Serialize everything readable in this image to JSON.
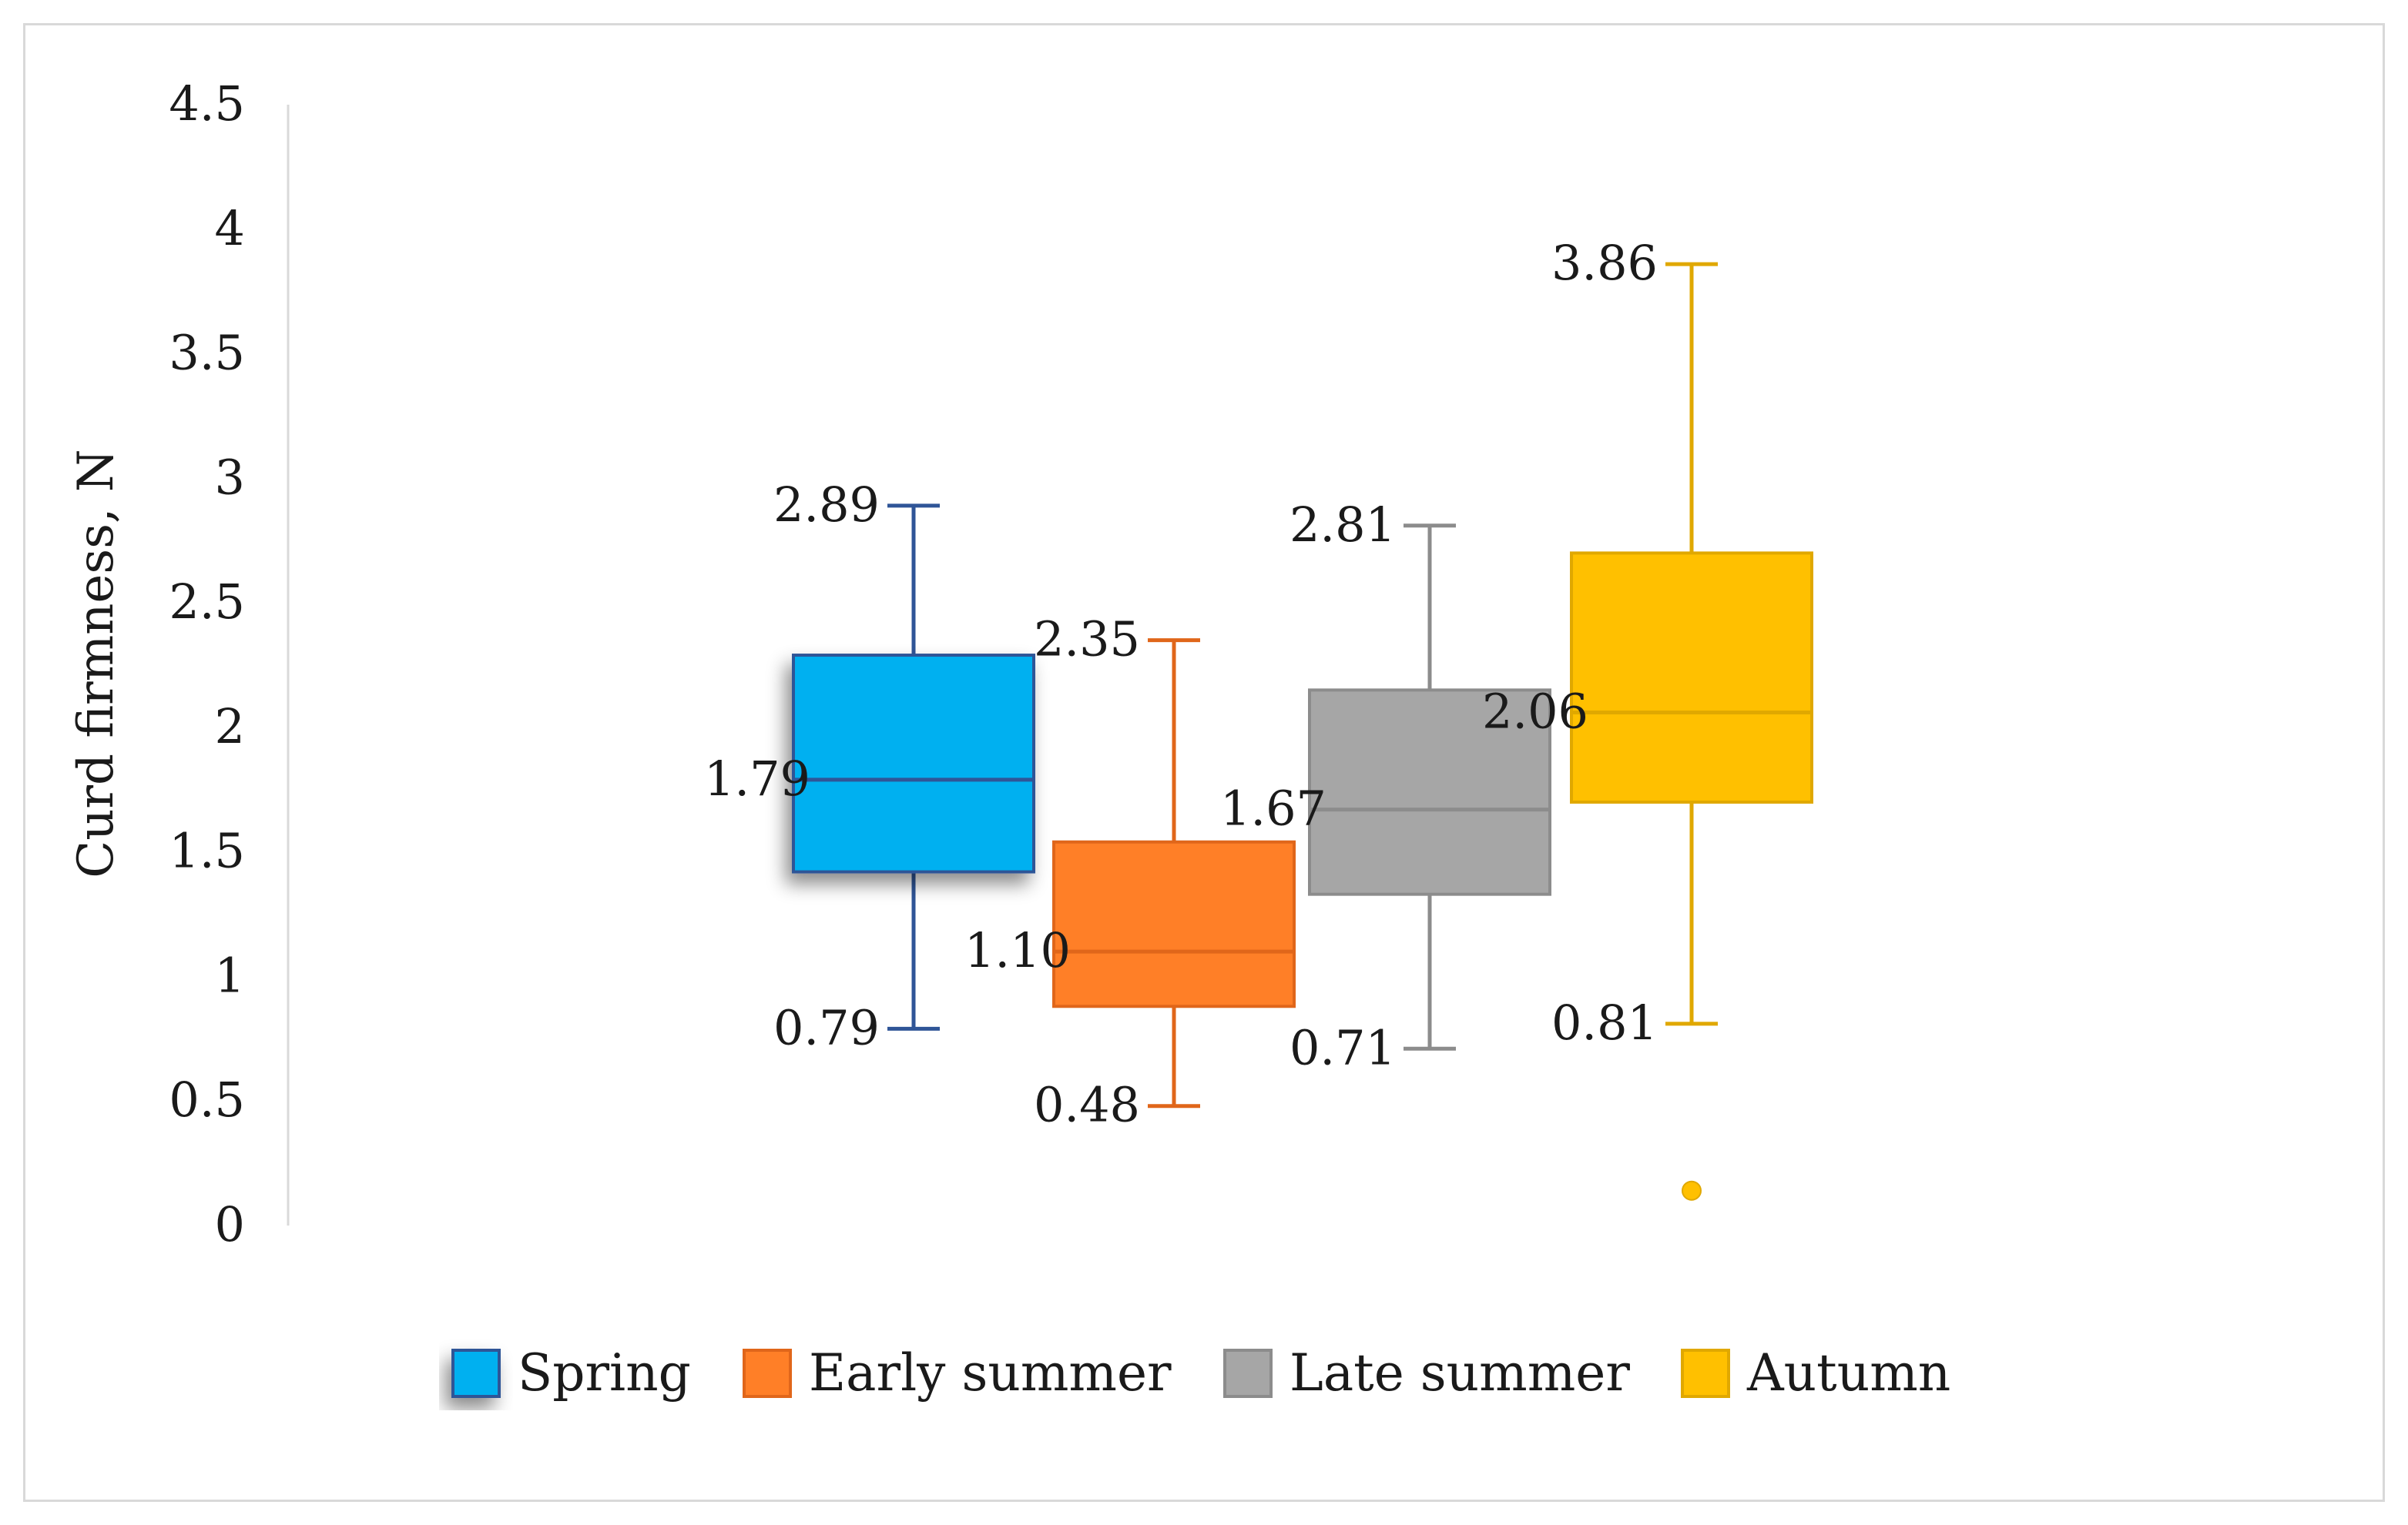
{
  "chart_data": {
    "type": "boxplot",
    "ylabel": "Curd firmness, N",
    "ylim": [
      0,
      4.5
    ],
    "yticks": [
      "0",
      "0.5",
      "1",
      "1.5",
      "2",
      "2.5",
      "3",
      "3.5",
      "4",
      "4.5"
    ],
    "ytick_values": [
      0,
      0.5,
      1,
      1.5,
      2,
      2.5,
      3,
      3.5,
      4,
      4.5
    ],
    "grid": false,
    "legend_position": "bottom",
    "series": [
      {
        "name": "Spring",
        "color": "#00b0f0",
        "edge_color": "#2f5597",
        "min": 0.79,
        "q1": 1.42,
        "median": 1.79,
        "q3": 2.29,
        "max": 2.89,
        "min_label": "0.79",
        "median_label": "1.79",
        "max_label": "2.89",
        "outliers": []
      },
      {
        "name": "Early summer",
        "color": "#ff7f27",
        "edge_color": "#e0661a",
        "min": 0.48,
        "q1": 0.88,
        "median": 1.1,
        "q3": 1.54,
        "max": 2.35,
        "min_label": "0.48",
        "median_label": "1.10",
        "max_label": "2.35",
        "outliers": []
      },
      {
        "name": "Late summer",
        "color": "#a6a6a6",
        "edge_color": "#8c8c8c",
        "min": 0.71,
        "q1": 1.33,
        "median": 1.67,
        "q3": 2.15,
        "max": 2.81,
        "min_label": "0.71",
        "median_label": "1.67",
        "max_label": "2.81",
        "outliers": []
      },
      {
        "name": "Autumn",
        "color": "#ffc000",
        "edge_color": "#e0a800",
        "min": 0.81,
        "q1": 1.7,
        "median": 2.06,
        "q3": 2.7,
        "max": 3.86,
        "min_label": "0.81",
        "median_label": "2.06",
        "max_label": "3.86",
        "outliers": [
          0.14
        ]
      }
    ]
  }
}
